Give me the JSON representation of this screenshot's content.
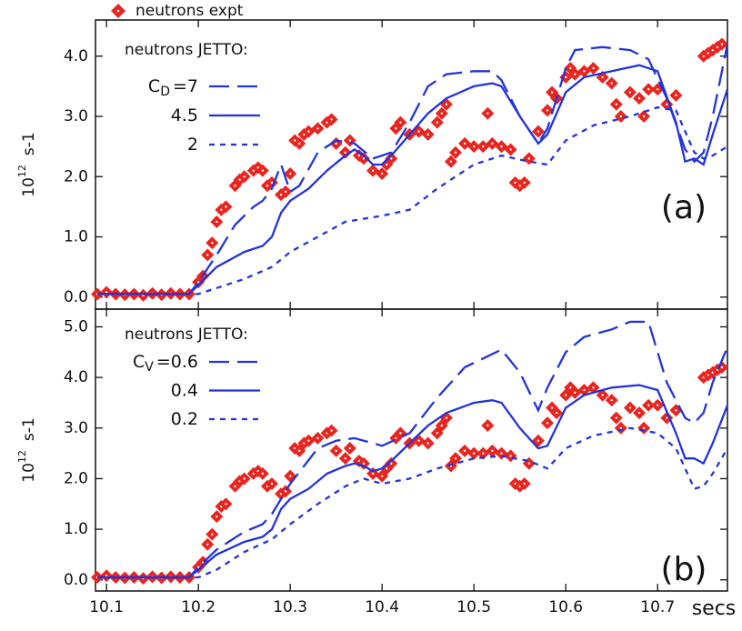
{
  "chart_data": [
    {
      "type": "line",
      "annotation": "(a)",
      "ylabel": {
        "base": "10",
        "exponent": "12",
        "unit": "s-1"
      },
      "legend_title": "neutrons JETTO:",
      "xlim": [
        10.088,
        10.776
      ],
      "xticks": [
        10.1,
        10.2,
        10.3,
        10.4,
        10.5,
        10.6,
        10.7
      ],
      "ylim": [
        -0.2,
        4.6
      ],
      "yticks": [
        {
          "value": 0,
          "label": "0.0"
        },
        {
          "value": 1,
          "label": "1.0"
        },
        {
          "value": 2,
          "label": "2.0"
        },
        {
          "value": 3,
          "label": "3.0"
        },
        {
          "value": 4,
          "label": "4.0"
        }
      ],
      "series": [
        {
          "name": "neutrons expt",
          "style": "points",
          "color": "#e8251f",
          "x": [
            10.09,
            10.1,
            10.11,
            10.12,
            10.13,
            10.14,
            10.15,
            10.16,
            10.17,
            10.18,
            10.19,
            10.2,
            10.205,
            10.21,
            10.215,
            10.22,
            10.225,
            10.23,
            10.24,
            10.245,
            10.25,
            10.26,
            10.265,
            10.27,
            10.275,
            10.28,
            10.29,
            10.295,
            10.3,
            10.305,
            10.31,
            10.315,
            10.32,
            10.33,
            10.34,
            10.345,
            10.35,
            10.36,
            10.365,
            10.375,
            10.38,
            10.39,
            10.4,
            10.405,
            10.41,
            10.415,
            10.42,
            10.43,
            10.44,
            10.45,
            10.46,
            10.465,
            10.47,
            10.475,
            10.48,
            10.49,
            10.5,
            10.51,
            10.515,
            10.52,
            10.53,
            10.54,
            10.545,
            10.55,
            10.555,
            10.56,
            10.57,
            10.58,
            10.585,
            10.59,
            10.6,
            10.605,
            10.61,
            10.62,
            10.63,
            10.64,
            10.65,
            10.655,
            10.66,
            10.67,
            10.68,
            10.685,
            10.69,
            10.7,
            10.71,
            10.72,
            10.75,
            10.755,
            10.76,
            10.765,
            10.77
          ],
          "values": [
            0.05,
            0.08,
            0.05,
            0.04,
            0.05,
            0.03,
            0.06,
            0.04,
            0.06,
            0.05,
            0.05,
            0.25,
            0.35,
            0.7,
            0.9,
            1.25,
            1.45,
            1.5,
            1.85,
            1.95,
            2.0,
            2.1,
            2.15,
            2.1,
            1.85,
            1.9,
            1.7,
            1.75,
            2.05,
            2.6,
            2.55,
            2.7,
            2.75,
            2.8,
            2.9,
            2.95,
            2.55,
            2.4,
            2.6,
            2.35,
            2.3,
            2.1,
            2.05,
            2.2,
            2.3,
            2.8,
            2.9,
            2.7,
            2.75,
            2.7,
            2.9,
            3.05,
            3.2,
            2.25,
            2.4,
            2.55,
            2.5,
            2.5,
            3.05,
            2.55,
            2.5,
            2.45,
            1.9,
            1.85,
            1.9,
            2.3,
            2.75,
            3.1,
            3.4,
            3.3,
            3.65,
            3.8,
            3.7,
            3.75,
            3.8,
            3.65,
            3.55,
            3.2,
            3.0,
            3.4,
            3.3,
            3.0,
            3.45,
            3.45,
            3.2,
            3.35,
            4.0,
            4.05,
            4.1,
            4.15,
            4.2
          ]
        },
        {
          "name": "=7",
          "name_symbol": "C",
          "name_subscript": "D",
          "style": "dash-long",
          "color": "#2233dd",
          "x": [
            10.09,
            10.19,
            10.2,
            10.22,
            10.24,
            10.26,
            10.27,
            10.28,
            10.29,
            10.3,
            10.31,
            10.33,
            10.35,
            10.37,
            10.39,
            10.41,
            10.43,
            10.45,
            10.47,
            10.5,
            10.52,
            10.53,
            10.55,
            10.57,
            10.58,
            10.6,
            10.61,
            10.64,
            10.67,
            10.69,
            10.71,
            10.73,
            10.74,
            10.75,
            10.76,
            10.776
          ],
          "values": [
            0.05,
            0.05,
            0.25,
            0.7,
            1.2,
            1.5,
            1.6,
            1.8,
            2.2,
            1.75,
            1.85,
            2.4,
            2.6,
            2.55,
            2.3,
            2.4,
            2.9,
            3.5,
            3.7,
            3.75,
            3.75,
            3.6,
            3.0,
            2.55,
            2.8,
            3.8,
            4.1,
            4.15,
            4.1,
            3.95,
            3.3,
            2.45,
            2.25,
            2.4,
            3.0,
            4.2
          ]
        },
        {
          "name": "4.5",
          "style": "solid",
          "color": "#2233dd",
          "x": [
            10.09,
            10.19,
            10.2,
            10.22,
            10.25,
            10.27,
            10.28,
            10.29,
            10.3,
            10.32,
            10.34,
            10.36,
            10.37,
            10.38,
            10.39,
            10.4,
            10.41,
            10.43,
            10.45,
            10.47,
            10.5,
            10.52,
            10.53,
            10.55,
            10.57,
            10.58,
            10.6,
            10.62,
            10.65,
            10.68,
            10.7,
            10.72,
            10.73,
            10.74,
            10.75,
            10.76,
            10.776
          ],
          "values": [
            0.05,
            0.05,
            0.2,
            0.5,
            0.75,
            0.85,
            1.0,
            1.4,
            1.6,
            1.8,
            2.1,
            2.35,
            2.45,
            2.35,
            2.2,
            2.2,
            2.35,
            2.7,
            3.05,
            3.3,
            3.5,
            3.55,
            3.5,
            3.0,
            2.55,
            2.7,
            3.4,
            3.65,
            3.75,
            3.85,
            3.75,
            2.9,
            2.25,
            2.3,
            2.2,
            2.7,
            3.45
          ]
        },
        {
          "name": "2",
          "style": "dash-short",
          "color": "#2233dd",
          "x": [
            10.09,
            10.2,
            10.22,
            10.25,
            10.28,
            10.3,
            10.33,
            10.36,
            10.4,
            10.43,
            10.46,
            10.5,
            10.53,
            10.56,
            10.58,
            10.6,
            10.63,
            10.67,
            10.7,
            10.72,
            10.74,
            10.75,
            10.76,
            10.776
          ],
          "values": [
            0.05,
            0.05,
            0.15,
            0.3,
            0.5,
            0.75,
            1.0,
            1.25,
            1.35,
            1.45,
            1.8,
            2.2,
            2.35,
            2.25,
            2.2,
            2.6,
            2.85,
            3.0,
            3.15,
            3.1,
            2.4,
            2.3,
            2.35,
            2.5
          ]
        }
      ]
    },
    {
      "type": "line",
      "annotation": "(b)",
      "ylabel": {
        "base": "10",
        "exponent": "12",
        "unit": "s-1"
      },
      "legend_title": "neutrons JETTO:",
      "xlabel": "secs",
      "xlim": [
        10.088,
        10.776
      ],
      "xticks": [
        10.1,
        10.2,
        10.3,
        10.4,
        10.5,
        10.6,
        10.7
      ],
      "ylim": [
        -0.22,
        5.35
      ],
      "yticks": [
        {
          "value": 0,
          "label": "0.0"
        },
        {
          "value": 1,
          "label": "1.0"
        },
        {
          "value": 2,
          "label": "2.0"
        },
        {
          "value": 3,
          "label": "3.0"
        },
        {
          "value": 4,
          "label": "4.0"
        },
        {
          "value": 5,
          "label": "5.0"
        }
      ],
      "series": [
        {
          "style": "points",
          "color": "#e8251f",
          "x": [
            10.09,
            10.1,
            10.11,
            10.12,
            10.13,
            10.14,
            10.15,
            10.16,
            10.17,
            10.18,
            10.19,
            10.2,
            10.205,
            10.21,
            10.215,
            10.22,
            10.225,
            10.23,
            10.24,
            10.245,
            10.25,
            10.26,
            10.265,
            10.27,
            10.275,
            10.28,
            10.29,
            10.295,
            10.3,
            10.305,
            10.31,
            10.315,
            10.32,
            10.33,
            10.34,
            10.345,
            10.35,
            10.36,
            10.365,
            10.375,
            10.38,
            10.39,
            10.4,
            10.405,
            10.41,
            10.415,
            10.42,
            10.43,
            10.44,
            10.45,
            10.46,
            10.465,
            10.47,
            10.475,
            10.48,
            10.49,
            10.5,
            10.51,
            10.515,
            10.52,
            10.53,
            10.54,
            10.545,
            10.55,
            10.555,
            10.56,
            10.57,
            10.58,
            10.585,
            10.59,
            10.6,
            10.605,
            10.61,
            10.62,
            10.63,
            10.64,
            10.65,
            10.655,
            10.66,
            10.67,
            10.68,
            10.685,
            10.69,
            10.7,
            10.71,
            10.72,
            10.75,
            10.755,
            10.76,
            10.765,
            10.77
          ],
          "values": [
            0.05,
            0.08,
            0.05,
            0.04,
            0.05,
            0.03,
            0.06,
            0.04,
            0.06,
            0.05,
            0.05,
            0.25,
            0.35,
            0.7,
            0.9,
            1.25,
            1.45,
            1.5,
            1.85,
            1.95,
            2.0,
            2.1,
            2.15,
            2.1,
            1.85,
            1.9,
            1.7,
            1.75,
            2.05,
            2.6,
            2.55,
            2.7,
            2.75,
            2.8,
            2.9,
            2.95,
            2.55,
            2.4,
            2.6,
            2.35,
            2.3,
            2.1,
            2.05,
            2.2,
            2.3,
            2.8,
            2.9,
            2.7,
            2.75,
            2.7,
            2.9,
            3.05,
            3.2,
            2.25,
            2.4,
            2.55,
            2.5,
            2.5,
            3.05,
            2.55,
            2.5,
            2.45,
            1.9,
            1.85,
            1.9,
            2.3,
            2.75,
            3.1,
            3.4,
            3.3,
            3.65,
            3.8,
            3.7,
            3.75,
            3.8,
            3.65,
            3.55,
            3.2,
            3.0,
            3.4,
            3.3,
            3.0,
            3.45,
            3.45,
            3.2,
            3.35,
            4.0,
            4.05,
            4.1,
            4.15,
            4.2
          ]
        },
        {
          "name": "=0.6",
          "name_symbol": "C",
          "name_subscript": "V",
          "style": "dash-long",
          "color": "#2233dd",
          "x": [
            10.09,
            10.19,
            10.2,
            10.22,
            10.25,
            10.27,
            10.28,
            10.3,
            10.33,
            10.35,
            10.37,
            10.4,
            10.43,
            10.46,
            10.49,
            10.53,
            10.55,
            10.57,
            10.58,
            10.6,
            10.62,
            10.65,
            10.67,
            10.69,
            10.71,
            10.73,
            10.74,
            10.75,
            10.76,
            10.776
          ],
          "values": [
            0.05,
            0.05,
            0.25,
            0.6,
            0.95,
            1.1,
            1.3,
            1.9,
            2.6,
            2.75,
            2.8,
            2.65,
            2.9,
            3.6,
            4.2,
            4.55,
            4.1,
            3.35,
            3.8,
            4.5,
            4.8,
            4.95,
            5.1,
            5.1,
            3.9,
            3.2,
            3.1,
            3.3,
            3.9,
            4.6
          ]
        },
        {
          "name": "0.4",
          "style": "solid",
          "color": "#2233dd",
          "x": [
            10.09,
            10.19,
            10.2,
            10.22,
            10.25,
            10.27,
            10.28,
            10.29,
            10.3,
            10.32,
            10.34,
            10.36,
            10.37,
            10.38,
            10.39,
            10.4,
            10.41,
            10.43,
            10.45,
            10.47,
            10.5,
            10.52,
            10.53,
            10.55,
            10.57,
            10.58,
            10.6,
            10.62,
            10.65,
            10.68,
            10.7,
            10.72,
            10.73,
            10.74,
            10.75,
            10.76,
            10.776
          ],
          "values": [
            0.05,
            0.05,
            0.2,
            0.5,
            0.75,
            0.85,
            1.0,
            1.4,
            1.6,
            1.8,
            2.1,
            2.25,
            2.3,
            2.25,
            2.15,
            2.2,
            2.35,
            2.7,
            3.05,
            3.3,
            3.5,
            3.55,
            3.5,
            3.0,
            2.6,
            2.65,
            3.4,
            3.65,
            3.8,
            3.85,
            3.75,
            2.9,
            2.4,
            2.4,
            2.3,
            2.7,
            3.45
          ]
        },
        {
          "name": "0.2",
          "style": "dash-short",
          "color": "#2233dd",
          "x": [
            10.09,
            10.2,
            10.22,
            10.25,
            10.28,
            10.3,
            10.33,
            10.36,
            10.38,
            10.4,
            10.43,
            10.46,
            10.5,
            10.53,
            10.56,
            10.58,
            10.6,
            10.63,
            10.67,
            10.7,
            10.72,
            10.74,
            10.75,
            10.76,
            10.776
          ],
          "values": [
            0.05,
            0.05,
            0.2,
            0.55,
            0.8,
            1.1,
            1.5,
            1.85,
            2.0,
            1.9,
            2.0,
            2.2,
            2.4,
            2.45,
            2.35,
            2.2,
            2.6,
            2.85,
            3.0,
            2.9,
            2.6,
            1.8,
            1.85,
            2.1,
            2.6
          ]
        }
      ]
    }
  ]
}
